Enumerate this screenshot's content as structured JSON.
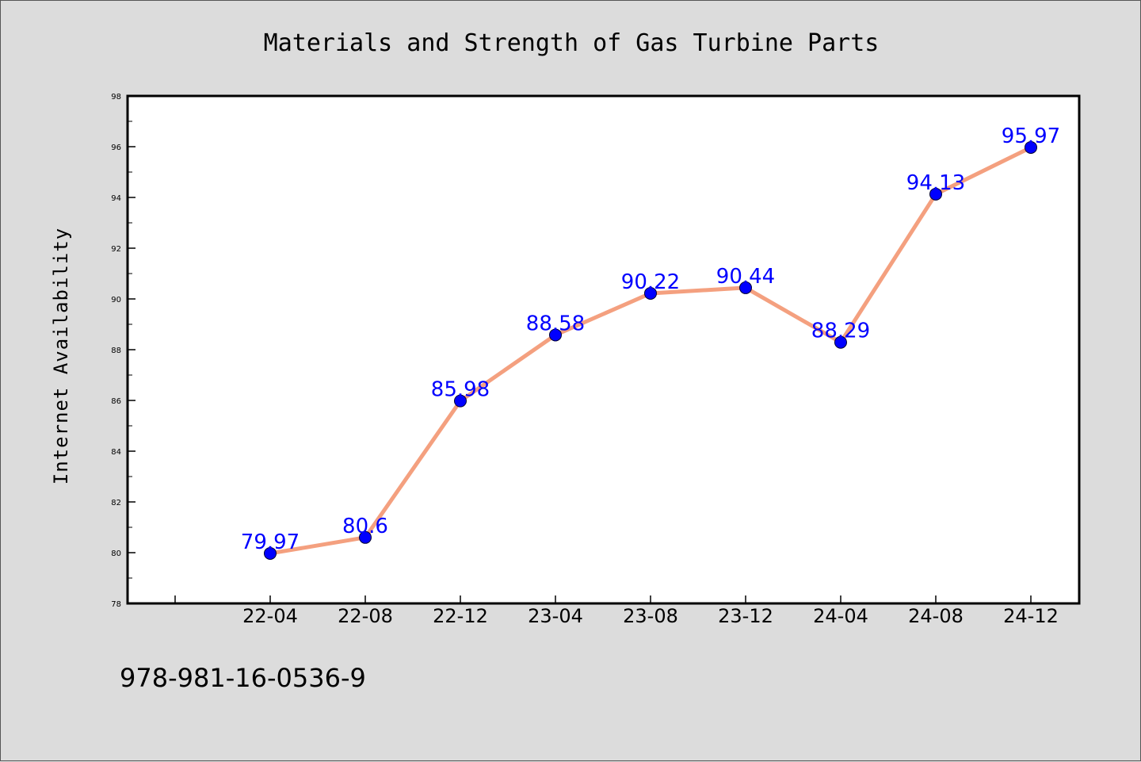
{
  "footer_text": "978-981-16-0536-9",
  "colors": {
    "background": "#dcdcdc",
    "plot_background": "#ffffff",
    "line": "#f4a07f",
    "marker": "#0000ff",
    "data_label": "#0000ff"
  },
  "chart_data": {
    "type": "line",
    "title": "Materials and Strength of Gas Turbine Parts",
    "xlabel": "",
    "ylabel": "Internet Availability",
    "x": [
      "22-04",
      "22-08",
      "22-12",
      "23-04",
      "23-08",
      "23-12",
      "24-04",
      "24-08",
      "24-12"
    ],
    "values": [
      79.97,
      80.6,
      85.98,
      88.58,
      90.22,
      90.44,
      88.29,
      94.13,
      95.97
    ],
    "data_labels": [
      "79.97",
      "80.6",
      "85.98",
      "88.58",
      "90.22",
      "90.44",
      "88.29",
      "94.13",
      "95.97"
    ],
    "ylim": [
      78,
      98
    ],
    "yticks": [
      "78",
      "80",
      "82",
      "84",
      "86",
      "88",
      "90",
      "92",
      "94",
      "96",
      "98"
    ],
    "grid": false,
    "legend": "none"
  }
}
